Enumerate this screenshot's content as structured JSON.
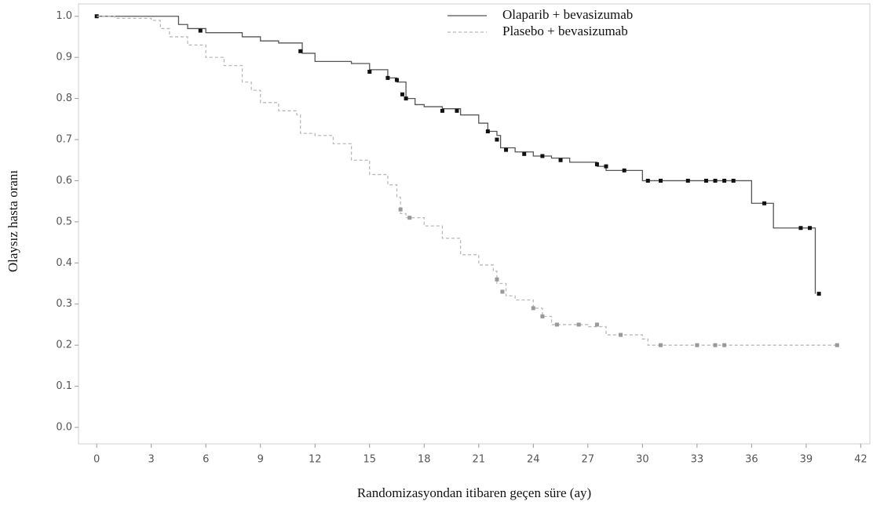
{
  "chart_data": {
    "type": "kaplan-meier",
    "xlabel": "Randomizasyondan itibaren geçen süre (ay)",
    "ylabel": "Olaysız hasta oranı",
    "xlim": [
      -1,
      42.5
    ],
    "ylim": [
      -0.04,
      1.03
    ],
    "xticks": [
      0,
      3,
      6,
      9,
      12,
      15,
      18,
      21,
      24,
      27,
      30,
      33,
      36,
      39,
      42
    ],
    "yticks": [
      {
        "value": 0,
        "label": "0.0"
      },
      0.1,
      0.2,
      0.3,
      0.4,
      0.5,
      0.6,
      0.7,
      0.8,
      0.9,
      {
        "value": 1,
        "label": "1.0"
      }
    ],
    "legend": "upper right",
    "series": [
      {
        "name": "Olaparib + bevasizumab",
        "color": "#555555",
        "dash": false,
        "x": [
          0,
          4.5,
          5,
          6,
          8,
          9,
          10,
          11.3,
          12,
          14,
          15,
          16,
          16.5,
          17,
          17.5,
          18,
          19,
          20,
          21,
          21.5,
          22,
          22.2,
          23,
          24,
          25,
          26,
          27.5,
          28,
          30,
          36,
          37.2,
          39.5
        ],
        "values": [
          1.0,
          0.98,
          0.97,
          0.96,
          0.95,
          0.94,
          0.935,
          0.91,
          0.89,
          0.885,
          0.87,
          0.85,
          0.84,
          0.8,
          0.785,
          0.78,
          0.775,
          0.76,
          0.74,
          0.72,
          0.71,
          0.68,
          0.67,
          0.66,
          0.655,
          0.645,
          0.635,
          0.625,
          0.6,
          0.545,
          0.485,
          0.325
        ],
        "censor_x": [
          0,
          5.7,
          11.2,
          15,
          16,
          16.5,
          16.8,
          17,
          19,
          19.8,
          21.5,
          22,
          22.5,
          23.5,
          24.5,
          25.5,
          27.5,
          28,
          29,
          30.3,
          31,
          32.5,
          33.5,
          34,
          34.5,
          35,
          36.7,
          38.7,
          39.2,
          39.7
        ],
        "censor_values": [
          1.0,
          0.965,
          0.915,
          0.865,
          0.85,
          0.845,
          0.81,
          0.8,
          0.77,
          0.77,
          0.72,
          0.7,
          0.675,
          0.665,
          0.66,
          0.65,
          0.64,
          0.635,
          0.625,
          0.6,
          0.6,
          0.6,
          0.6,
          0.6,
          0.6,
          0.6,
          0.545,
          0.485,
          0.485,
          0.325
        ]
      },
      {
        "name": "Plasebo + bevasizumab",
        "color": "#b8b8b8",
        "dash": true,
        "x": [
          0,
          1,
          3,
          3.5,
          4,
          5,
          6,
          7,
          8,
          8.5,
          9,
          10,
          11,
          11.2,
          12,
          13,
          14,
          15,
          16,
          16.5,
          16.7,
          17,
          18,
          19,
          20,
          21,
          21.8,
          22,
          22.5,
          23,
          24,
          24.5,
          25,
          27,
          28,
          30,
          30.3,
          40.7
        ],
        "values": [
          1.0,
          0.995,
          0.99,
          0.97,
          0.95,
          0.93,
          0.9,
          0.88,
          0.84,
          0.82,
          0.79,
          0.77,
          0.76,
          0.715,
          0.71,
          0.69,
          0.65,
          0.615,
          0.59,
          0.56,
          0.52,
          0.51,
          0.49,
          0.46,
          0.42,
          0.395,
          0.38,
          0.35,
          0.32,
          0.31,
          0.29,
          0.27,
          0.25,
          0.245,
          0.225,
          0.215,
          0.2,
          0.2
        ],
        "censor_x": [
          16.7,
          17.2,
          22,
          22.3,
          24,
          24.5,
          25.3,
          26.5,
          27.5,
          28.8,
          31,
          33,
          34,
          34.5,
          40.7
        ],
        "censor_values": [
          0.53,
          0.51,
          0.36,
          0.33,
          0.29,
          0.27,
          0.25,
          0.25,
          0.25,
          0.225,
          0.2,
          0.2,
          0.2,
          0.2,
          0.2
        ]
      }
    ]
  }
}
